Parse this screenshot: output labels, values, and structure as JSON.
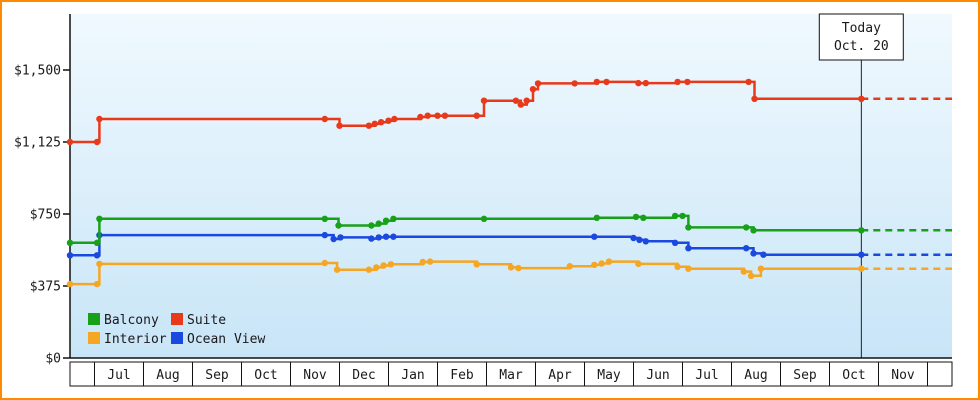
{
  "frame": {
    "border_color": "#ff8a00",
    "bg_top": "#f0f9fe",
    "bg_bottom": "#c8e5f7"
  },
  "today": {
    "line1": "Today",
    "line2": "Oct. 20",
    "position_month_units": 16.15
  },
  "chart_data": {
    "type": "line",
    "title": "",
    "style": "stepped price history with dashed forecast after today",
    "y_axis": {
      "min": 0,
      "max": 1500,
      "ticks": [
        {
          "value": 0,
          "label": "$0"
        },
        {
          "value": 375,
          "label": "$375"
        },
        {
          "value": 750,
          "label": "$750"
        },
        {
          "value": 1125,
          "label": "$1,125"
        },
        {
          "value": 1500,
          "label": "$1,500"
        }
      ]
    },
    "x_axis": {
      "months": [
        "Jul",
        "Aug",
        "Sep",
        "Oct",
        "Nov",
        "Dec",
        "Jan",
        "Feb",
        "Mar",
        "Apr",
        "May",
        "Jun",
        "Jul",
        "Aug",
        "Sep",
        "Oct",
        "Nov"
      ]
    },
    "series": [
      {
        "name": "Balcony",
        "color": "#18a018",
        "points": [
          [
            0,
            600
          ],
          [
            0.55,
            600
          ],
          [
            0.6,
            725
          ],
          [
            5.2,
            725
          ],
          [
            5.48,
            690
          ],
          [
            6.15,
            690
          ],
          [
            6.3,
            700
          ],
          [
            6.45,
            715
          ],
          [
            6.6,
            725
          ],
          [
            8.45,
            725
          ],
          [
            10.75,
            730
          ],
          [
            11.55,
            735
          ],
          [
            11.7,
            730
          ],
          [
            12.35,
            740
          ],
          [
            12.5,
            740
          ],
          [
            12.62,
            680
          ],
          [
            13.8,
            680
          ],
          [
            13.95,
            665
          ],
          [
            16.15,
            665
          ]
        ],
        "forecast": [
          [
            16.15,
            665
          ],
          [
            18,
            665
          ]
        ]
      },
      {
        "name": "Suite",
        "color": "#e8391b",
        "points": [
          [
            0,
            1125
          ],
          [
            0.55,
            1125
          ],
          [
            0.6,
            1245
          ],
          [
            5.2,
            1245
          ],
          [
            5.5,
            1210
          ],
          [
            6.1,
            1210
          ],
          [
            6.22,
            1220
          ],
          [
            6.35,
            1228
          ],
          [
            6.5,
            1236
          ],
          [
            6.62,
            1245
          ],
          [
            7.15,
            1255
          ],
          [
            7.3,
            1262
          ],
          [
            7.5,
            1262
          ],
          [
            7.65,
            1262
          ],
          [
            8.3,
            1262
          ],
          [
            8.45,
            1340
          ],
          [
            9.1,
            1340
          ],
          [
            9.2,
            1320
          ],
          [
            9.32,
            1340
          ],
          [
            9.45,
            1400
          ],
          [
            9.55,
            1430
          ],
          [
            10.3,
            1430
          ],
          [
            10.75,
            1438
          ],
          [
            10.95,
            1438
          ],
          [
            11.6,
            1432
          ],
          [
            11.75,
            1432
          ],
          [
            12.4,
            1438
          ],
          [
            12.6,
            1438
          ],
          [
            13.85,
            1438
          ],
          [
            13.97,
            1350
          ],
          [
            16.15,
            1350
          ]
        ],
        "forecast": [
          [
            16.15,
            1350
          ],
          [
            18,
            1350
          ]
        ]
      },
      {
        "name": "Interior",
        "color": "#f5a623",
        "points": [
          [
            0,
            385
          ],
          [
            0.55,
            385
          ],
          [
            0.6,
            490
          ],
          [
            5.2,
            495
          ],
          [
            5.45,
            460
          ],
          [
            6.1,
            460
          ],
          [
            6.25,
            472
          ],
          [
            6.4,
            482
          ],
          [
            6.55,
            488
          ],
          [
            7.2,
            500
          ],
          [
            7.35,
            502
          ],
          [
            8.3,
            488
          ],
          [
            9.0,
            472
          ],
          [
            9.15,
            468
          ],
          [
            10.2,
            478
          ],
          [
            10.7,
            485
          ],
          [
            10.85,
            492
          ],
          [
            11.0,
            502
          ],
          [
            11.6,
            490
          ],
          [
            12.4,
            475
          ],
          [
            12.62,
            465
          ],
          [
            13.75,
            450
          ],
          [
            13.9,
            428
          ],
          [
            14.1,
            465
          ],
          [
            16.15,
            465
          ]
        ],
        "forecast": [
          [
            16.15,
            465
          ],
          [
            18,
            465
          ]
        ]
      },
      {
        "name": "Ocean View",
        "color": "#1b49df",
        "points": [
          [
            0,
            535
          ],
          [
            0.55,
            535
          ],
          [
            0.6,
            640
          ],
          [
            5.2,
            640
          ],
          [
            5.38,
            620
          ],
          [
            5.52,
            628
          ],
          [
            6.15,
            622
          ],
          [
            6.3,
            628
          ],
          [
            6.45,
            632
          ],
          [
            6.6,
            632
          ],
          [
            10.7,
            632
          ],
          [
            11.5,
            625
          ],
          [
            11.62,
            615
          ],
          [
            11.75,
            608
          ],
          [
            12.35,
            600
          ],
          [
            12.62,
            572
          ],
          [
            13.8,
            572
          ],
          [
            13.95,
            545
          ],
          [
            14.15,
            538
          ],
          [
            16.15,
            538
          ]
        ],
        "forecast": [
          [
            16.15,
            538
          ],
          [
            18,
            538
          ]
        ]
      }
    ],
    "legend": {
      "position": "bottom-left",
      "items": [
        "Balcony",
        "Suite",
        "Interior",
        "Ocean View"
      ]
    }
  }
}
